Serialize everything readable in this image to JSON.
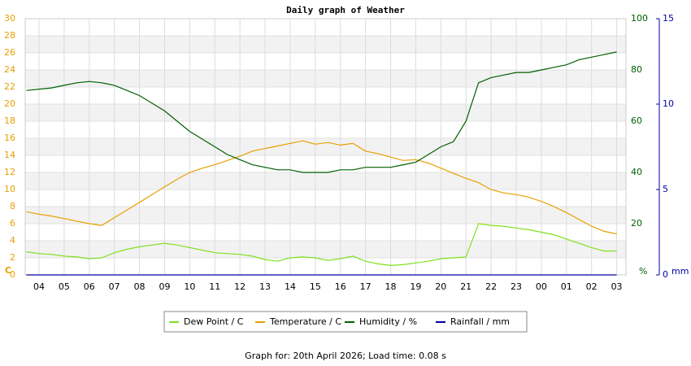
{
  "chart_data": {
    "type": "line",
    "title": "Daily graph of Weather",
    "ylabel": "C",
    "y2label": "%",
    "y3label": "mm",
    "footer": "Graph for: 20th April 2026; Load time: 0.08 s",
    "x": [
      -0.5,
      0,
      0.5,
      1,
      1.5,
      2,
      2.5,
      3,
      3.5,
      4,
      4.5,
      5,
      5.5,
      6,
      6.5,
      7,
      7.5,
      8,
      8.5,
      9,
      9.5,
      10,
      10.5,
      11,
      11.5,
      12,
      12.5,
      13,
      13.5,
      14,
      14.5,
      15,
      15.5,
      16,
      16.5,
      17,
      17.5,
      18,
      18.5,
      19,
      19.5,
      20,
      20.5,
      21,
      21.5,
      22,
      22.5,
      23
    ],
    "xlim": [
      -0.55,
      23.37
    ],
    "xticks": [
      {
        "value": 0,
        "label": "04"
      },
      {
        "value": 1,
        "label": "05"
      },
      {
        "value": 2,
        "label": "06"
      },
      {
        "value": 3,
        "label": "07"
      },
      {
        "value": 4,
        "label": "08"
      },
      {
        "value": 5,
        "label": "09"
      },
      {
        "value": 6,
        "label": "10"
      },
      {
        "value": 7,
        "label": "11"
      },
      {
        "value": 8,
        "label": "12"
      },
      {
        "value": 9,
        "label": "13"
      },
      {
        "value": 10,
        "label": "14"
      },
      {
        "value": 11,
        "label": "15"
      },
      {
        "value": 12,
        "label": "16"
      },
      {
        "value": 13,
        "label": "17"
      },
      {
        "value": 14,
        "label": "18"
      },
      {
        "value": 15,
        "label": "19"
      },
      {
        "value": 16,
        "label": "20"
      },
      {
        "value": 17,
        "label": "21"
      },
      {
        "value": 18,
        "label": "22"
      },
      {
        "value": 19,
        "label": "23"
      },
      {
        "value": 20,
        "label": "00"
      },
      {
        "value": 21,
        "label": "01"
      },
      {
        "value": 22,
        "label": "02"
      },
      {
        "value": 23,
        "label": "03"
      }
    ],
    "ylim": [
      0,
      30
    ],
    "yticks": [
      0,
      2,
      4,
      6,
      8,
      10,
      12,
      14,
      16,
      18,
      20,
      22,
      24,
      26,
      28,
      30
    ],
    "y2lim": [
      0,
      100
    ],
    "y2ticks": [
      20,
      40,
      60,
      80,
      100
    ],
    "y3lim": [
      0,
      15
    ],
    "y3ticks": [
      0,
      5,
      10,
      15
    ],
    "grid": true,
    "series": [
      {
        "name": "Dew Point / C",
        "color": "#80e020",
        "values": [
          2.7,
          2.5,
          2.4,
          2.2,
          2.1,
          1.9,
          2.0,
          2.6,
          3.0,
          3.3,
          3.5,
          3.7,
          3.5,
          3.2,
          2.9,
          2.6,
          2.5,
          2.4,
          2.2,
          1.8,
          1.6,
          2.0,
          2.1,
          2.0,
          1.7,
          1.9,
          2.2,
          1.6,
          1.3,
          1.1,
          1.2,
          1.4,
          1.6,
          1.9,
          2.0,
          2.1,
          6.0,
          5.8,
          5.7,
          5.5,
          5.3,
          5.0,
          4.7,
          4.2,
          3.7,
          3.2,
          2.8,
          2.8
        ]
      },
      {
        "name": "Temperature / C",
        "color": "#e8a000",
        "values": [
          7.4,
          7.1,
          6.9,
          6.6,
          6.3,
          6.0,
          5.8,
          6.7,
          7.6,
          8.5,
          9.4,
          10.3,
          11.2,
          12.0,
          12.5,
          12.9,
          13.4,
          13.9,
          14.5,
          14.8,
          15.1,
          15.4,
          15.7,
          15.3,
          15.5,
          15.2,
          15.4,
          14.5,
          14.2,
          13.8,
          13.4,
          13.5,
          13.1,
          12.5,
          11.9,
          11.3,
          10.8,
          10.0,
          9.6,
          9.4,
          9.1,
          8.6,
          8.0,
          7.3,
          6.5,
          5.7,
          5.1,
          4.8
        ]
      },
      {
        "name": "Humidity / %",
        "color": "#006000",
        "axis": "y2",
        "values": [
          72,
          72.5,
          73,
          74,
          75,
          75.5,
          75,
          74,
          72,
          70,
          67,
          64,
          60,
          56,
          53,
          50,
          47,
          45,
          43,
          42,
          41,
          41,
          40,
          40,
          40,
          41,
          41,
          42,
          42,
          42,
          43,
          44,
          47,
          50,
          52,
          60,
          75,
          77,
          78,
          79,
          79,
          80,
          81,
          82,
          84,
          85,
          86,
          87
        ]
      },
      {
        "name": "Rainfall / mm",
        "color": "#0000a0",
        "axis": "y3",
        "values": [
          0,
          0,
          0,
          0,
          0,
          0,
          0,
          0,
          0,
          0,
          0,
          0,
          0,
          0,
          0,
          0,
          0,
          0,
          0,
          0,
          0,
          0,
          0,
          0,
          0,
          0,
          0,
          0,
          0,
          0,
          0,
          0,
          0,
          0,
          0,
          0,
          0,
          0,
          0,
          0,
          0,
          0,
          0,
          0,
          0,
          0,
          0,
          0
        ]
      }
    ]
  }
}
